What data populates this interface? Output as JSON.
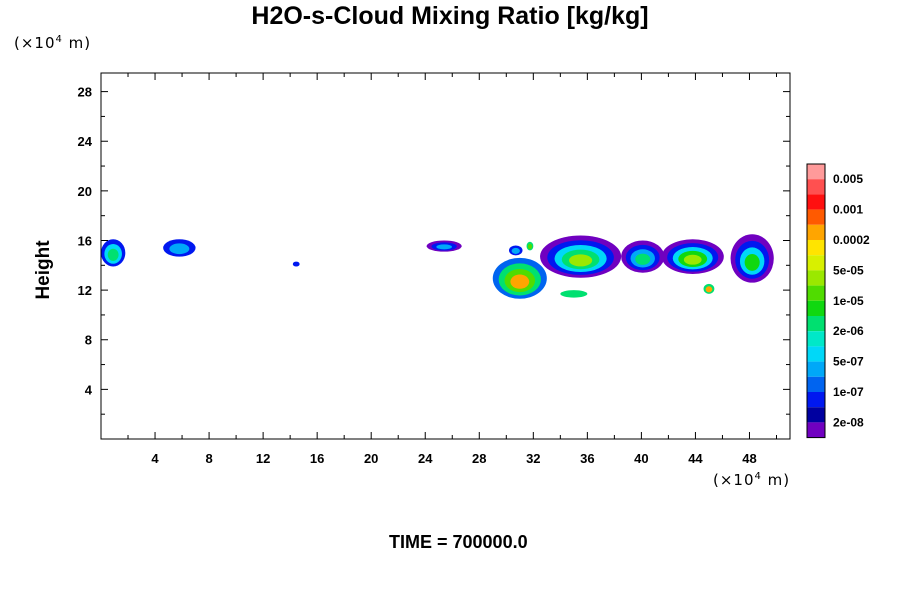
{
  "chart_data": {
    "type": "contour",
    "title": "H2O-s-Cloud Mixing Ratio [kg/kg]",
    "ylabel": "Height",
    "xlabel": "",
    "x_unit_prefix": "(×10",
    "x_unit_exp": "4",
    "x_unit_suffix": " m)",
    "y_unit_prefix": "(×10",
    "y_unit_exp": "4",
    "y_unit_suffix": " m)",
    "xlim": [
      0,
      51
    ],
    "ylim": [
      0,
      29.5
    ],
    "x_ticks": [
      "4",
      "8",
      "12",
      "16",
      "20",
      "24",
      "28",
      "32",
      "36",
      "40",
      "44",
      "48"
    ],
    "y_ticks": [
      "4",
      "8",
      "12",
      "16",
      "20",
      "24",
      "28"
    ],
    "time_label": "TIME = 700000.0",
    "colorbar": {
      "labels": [
        "0.005",
        "0.001",
        "0.0002",
        "5e-05",
        "1e-05",
        "2e-06",
        "5e-07",
        "1e-07",
        "2e-08"
      ],
      "colors": [
        "#ff9a9a",
        "#ff5050",
        "#ff1010",
        "#ff5a00",
        "#ffa500",
        "#ffe400",
        "#d8f000",
        "#9be800",
        "#50dc00",
        "#10d810",
        "#00e070",
        "#00e8c8",
        "#00d8f8",
        "#00a8f8",
        "#0064f0",
        "#0018f0",
        "#0000a0",
        "#7000c0"
      ]
    },
    "blobs": [
      {
        "x": 0.0,
        "y": 13.9,
        "w": 1.8,
        "h": 2.2,
        "levels": [
          "#0018f0",
          "#00d8f8",
          "#00e070"
        ]
      },
      {
        "x": 4.6,
        "y": 14.7,
        "w": 2.4,
        "h": 1.4,
        "levels": [
          "#0018f0",
          "#00a8f8"
        ]
      },
      {
        "x": 14.2,
        "y": 13.9,
        "w": 0.5,
        "h": 0.4,
        "levels": [
          "#0018f0"
        ]
      },
      {
        "x": 24.1,
        "y": 15.1,
        "w": 2.6,
        "h": 0.9,
        "levels": [
          "#7000c0",
          "#0018f0",
          "#00a8f8"
        ]
      },
      {
        "x": 29.0,
        "y": 11.3,
        "w": 4.0,
        "h": 3.3,
        "levels": [
          "#0064f0",
          "#00e070",
          "#50dc00",
          "#ffa500"
        ]
      },
      {
        "x": 32.5,
        "y": 13.0,
        "w": 6.0,
        "h": 3.4,
        "levels": [
          "#7000c0",
          "#0018f0",
          "#00d8f8",
          "#00e070",
          "#9be800"
        ]
      },
      {
        "x": 38.5,
        "y": 13.4,
        "w": 3.2,
        "h": 2.6,
        "levels": [
          "#7000c0",
          "#0018f0",
          "#00a8f8",
          "#00e070"
        ]
      },
      {
        "x": 41.5,
        "y": 13.3,
        "w": 4.6,
        "h": 2.8,
        "levels": [
          "#7000c0",
          "#0018f0",
          "#00d8f8",
          "#10d810",
          "#9be800"
        ]
      },
      {
        "x": 46.6,
        "y": 12.6,
        "w": 3.2,
        "h": 3.9,
        "levels": [
          "#7000c0",
          "#0018f0",
          "#00d8f8",
          "#10d810"
        ]
      },
      {
        "x": 44.6,
        "y": 11.7,
        "w": 0.8,
        "h": 0.8,
        "levels": [
          "#00e070",
          "#ffa500"
        ]
      },
      {
        "x": 34.0,
        "y": 11.4,
        "w": 2.0,
        "h": 0.6,
        "levels": [
          "#00e070"
        ]
      },
      {
        "x": 30.2,
        "y": 14.8,
        "w": 1.0,
        "h": 0.8,
        "levels": [
          "#0018f0",
          "#00a8f8"
        ]
      },
      {
        "x": 31.5,
        "y": 15.2,
        "w": 0.5,
        "h": 0.7,
        "levels": [
          "#00e070",
          "#50dc00"
        ]
      }
    ]
  }
}
